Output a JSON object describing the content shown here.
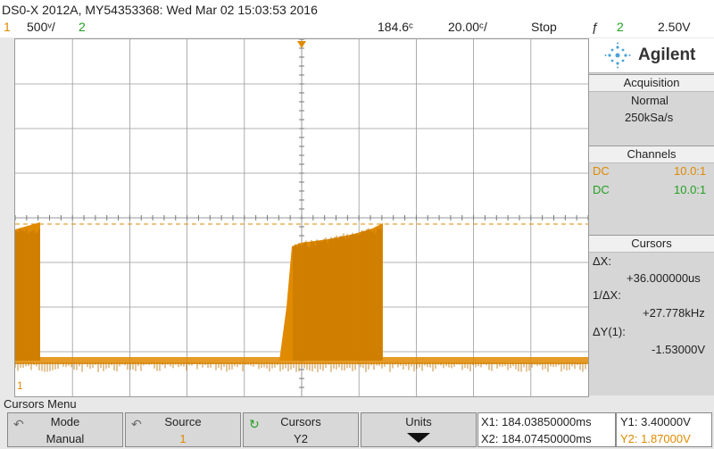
{
  "topbar": {
    "model_info": "DS0-X 2012A, MY54353368: Wed Mar 02 15:03:53 2016",
    "ch1_num": "1",
    "ch1_scale": "500ᵛ/",
    "ch2_num": "2",
    "time_offset": "184.6ᶜ",
    "time_scale": "20.00ᶜ/",
    "run_state": "Stop",
    "trigger_icon": "ƒ",
    "trigger_ch": "2",
    "trigger_level": "2.50V"
  },
  "panel": {
    "brand": "Agilent",
    "acq_header": "Acquisition",
    "acq_mode": "Normal",
    "acq_rate": "250kSa/s",
    "ch_header": "Channels",
    "ch1_coupling": "DC",
    "ch1_probe": "10.0:1",
    "ch2_coupling": "DC",
    "ch2_probe": "10.0:1",
    "cur_header": "Cursors",
    "dx_label": "ΔX:",
    "dx_value": "+36.000000us",
    "inv_dx_label": "1/ΔX:",
    "inv_dx_value": "+27.778kHz",
    "dy_label": "ΔY(1):",
    "dy_value": "-1.53000V"
  },
  "menu": {
    "title": "Cursors Menu",
    "mode_label": "Mode",
    "mode_value": "Manual",
    "source_label": "Source",
    "source_value": "1",
    "cursors_label": "Cursors",
    "cursors_value": "Y2",
    "units_label": "Units",
    "x1": "X1: 184.03850000ms",
    "x2": "X2: 184.07450000ms",
    "y1": "Y1: 3.40000V",
    "y2": "Y2: 1.87000V"
  },
  "colors": {
    "ch1": "#e08a00",
    "ch2": "#22a022"
  }
}
